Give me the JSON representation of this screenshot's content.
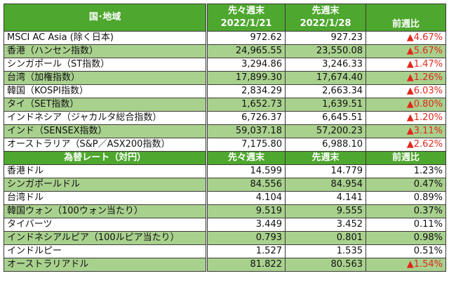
{
  "indices_table": {
    "headers": {
      "region": "国･地域",
      "prev_prev_label": "先々週末",
      "prev_prev_date": "2022/1/21",
      "prev_label": "先週末",
      "prev_date": "2022/1/28",
      "change": "前週比"
    },
    "rows": [
      {
        "name": "MSCI AC Asia (除く日本)",
        "prev_prev": "972.62",
        "prev": "927.23",
        "change": "▲4.67%",
        "negative": true
      },
      {
        "name": "香港（ハンセン指数）",
        "prev_prev": "24,965.55",
        "prev": "23,550.08",
        "change": "▲5.67%",
        "negative": true
      },
      {
        "name": "シンガポール（ST指数）",
        "prev_prev": "3,294.86",
        "prev": "3,246.33",
        "change": "▲1.47%",
        "negative": true
      },
      {
        "name": "台湾（加権指数）",
        "prev_prev": "17,899.30",
        "prev": "17,674.40",
        "change": "▲1.26%",
        "negative": true
      },
      {
        "name": "韓国（KOSPI指数）",
        "prev_prev": "2,834.29",
        "prev": "2,663.34",
        "change": "▲6.03%",
        "negative": true
      },
      {
        "name": "タイ（SET指数）",
        "prev_prev": "1,652.73",
        "prev": "1,639.51",
        "change": "▲0.80%",
        "negative": true
      },
      {
        "name": "インドネシア（ジャカルタ総合指数）",
        "prev_prev": "6,726.37",
        "prev": "6,645.51",
        "change": "▲1.20%",
        "negative": true
      },
      {
        "name": "インド（SENSEX指数）",
        "prev_prev": "59,037.18",
        "prev": "57,200.23",
        "change": "▲3.11%",
        "negative": true
      },
      {
        "name": "オーストラリア（S&P／ASX200指数）",
        "prev_prev": "7,175.80",
        "prev": "6,988.10",
        "change": "▲2.62%",
        "negative": true
      }
    ]
  },
  "fx_table": {
    "headers": {
      "currency": "為替レート（対円）",
      "prev_prev_label": "先々週末",
      "prev_label": "先週末",
      "change": "前週比"
    },
    "rows": [
      {
        "name": "香港ドル",
        "prev_prev": "14.599",
        "prev": "14.779",
        "change": "1.23%",
        "negative": false
      },
      {
        "name": "シンガポールドル",
        "prev_prev": "84.556",
        "prev": "84.954",
        "change": "0.47%",
        "negative": false
      },
      {
        "name": "台湾ドル",
        "prev_prev": "4.104",
        "prev": "4.141",
        "change": "0.89%",
        "negative": false
      },
      {
        "name": "韓国ウォン（100ウォン当たり）",
        "prev_prev": "9.519",
        "prev": "9.555",
        "change": "0.37%",
        "negative": false
      },
      {
        "name": "タイバーツ",
        "prev_prev": "3.449",
        "prev": "3.452",
        "change": "0.11%",
        "negative": false
      },
      {
        "name": "インドネシアルピア（100ルピア当たり）",
        "prev_prev": "0.793",
        "prev": "0.801",
        "change": "0.98%",
        "negative": false
      },
      {
        "name": "インドルピー",
        "prev_prev": "1.527",
        "prev": "1.535",
        "change": "0.51%",
        "negative": false
      },
      {
        "name": "オーストラリアドル",
        "prev_prev": "81.822",
        "prev": "80.563",
        "change": "▲1.54%",
        "negative": true
      }
    ]
  },
  "colors": {
    "header_green": "#4ea72e",
    "row_green": "#a9d18e",
    "negative_red": "#e0281c"
  }
}
